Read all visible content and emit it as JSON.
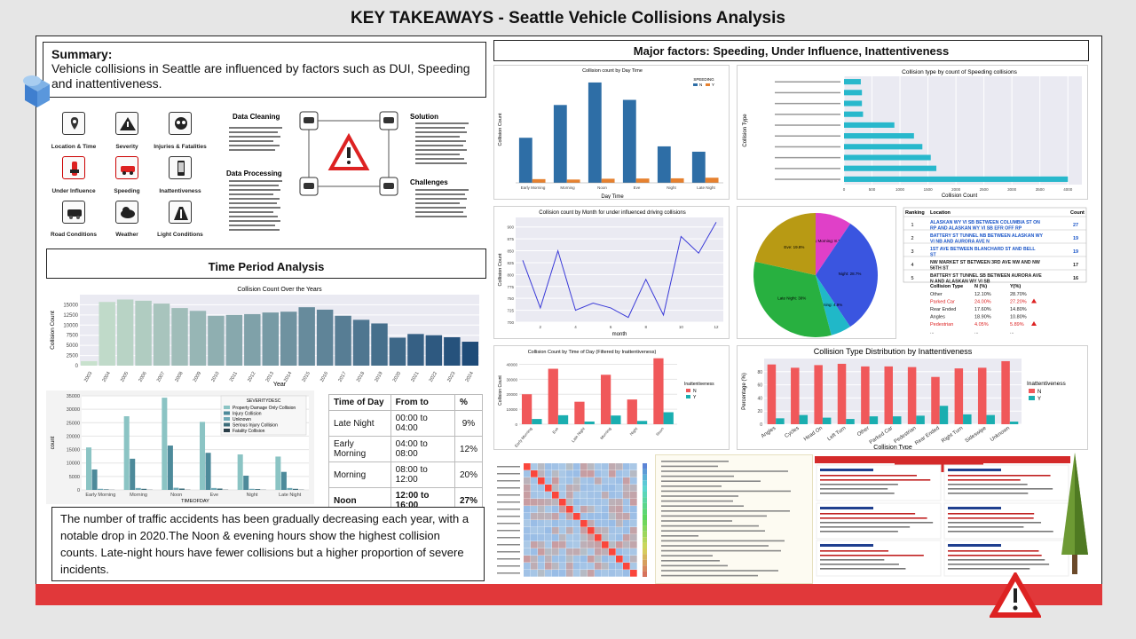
{
  "page_title": "KEY TAKEAWAYS - Seattle Vehicle Collisions Analysis",
  "summary": {
    "heading": "Summary:",
    "body": "Vehicle collisions in Seattle are influenced by factors such as DUI, Speeding and inattentiveness."
  },
  "icons": [
    {
      "label": "Location & Time",
      "icon": "map-pin-icon"
    },
    {
      "label": "Severity",
      "icon": "warning-icon"
    },
    {
      "label": "Injuries & Fatalities",
      "icon": "skull-icon"
    },
    {
      "label": "Under Influence",
      "icon": "bottle-icon"
    },
    {
      "label": "Speeding",
      "icon": "speeding-car-icon"
    },
    {
      "label": "Inattentiveness",
      "icon": "phone-icon"
    },
    {
      "label": "Road Conditions",
      "icon": "road-car-icon"
    },
    {
      "label": "Weather",
      "icon": "cloud-icon"
    },
    {
      "label": "Light Conditions",
      "icon": "streetlight-icon"
    }
  ],
  "process": {
    "cleaning": "Data Cleaning",
    "processing": "Data Processing",
    "solution": "Solution",
    "challenges": "Challenges"
  },
  "time_period_heading": "Time Period Analysis",
  "major_factors_heading": "Major factors: Speeding, Under Influence, Inattentiveness",
  "time_of_day_table": {
    "headers": [
      "Time of Day",
      "From to",
      "%"
    ],
    "rows": [
      [
        "Late Night",
        "00:00 to 04:00",
        "9%"
      ],
      [
        "Early Morning",
        "04:00 to 08:00",
        "12%"
      ],
      [
        "Morning",
        "08:00 to 12:00",
        "20%"
      ],
      [
        "Noon",
        "12:00 to 16:00",
        "27%"
      ],
      [
        "Eve",
        "16:00 to 20:00",
        "22%"
      ],
      [
        "Night",
        "20:00 to 00:00",
        "10%"
      ]
    ],
    "highlight_row": 3
  },
  "ranking_table": {
    "headers": [
      "Ranking",
      "Location",
      "Count"
    ],
    "rows": [
      [
        "1",
        "ALASKAN WY VI SB BETWEEN COLUMBIA ST ON RP AND ALASKAN WY VI SB EFR OFF RP",
        "27"
      ],
      [
        "2",
        "BATTERY ST TUNNEL NB BETWEEN ALASKAN WY VI NB AND AURORA AVE N",
        "19"
      ],
      [
        "3",
        "1ST AVE BETWEEN BLANCHARD ST AND BELL ST",
        "19"
      ],
      [
        "4",
        "NW MARKET ST BETWEEN 3RD AVE NW AND NW 56TH ST",
        "17"
      ],
      [
        "5",
        "BATTERY ST TUNNEL SB BETWEEN AURORA AVE N AND ALASKAN WY VI SB",
        "16"
      ]
    ]
  },
  "collision_type_table": {
    "headers": [
      "Collision Type",
      "N (%)",
      "Y(%)"
    ],
    "rows": [
      [
        "Other",
        "12.10%",
        "28.70%"
      ],
      [
        "Parked Car",
        "24.00%",
        "27.20%"
      ],
      [
        "Rear Ended",
        "17.60%",
        "14.80%"
      ],
      [
        "Angles",
        "18.90%",
        "10.80%"
      ],
      [
        "Pedestrian",
        "4.05%",
        "5.89%"
      ],
      [
        "...",
        "...",
        "..."
      ]
    ]
  },
  "conclusion": "The number of traffic accidents has been gradually decreasing each year, with a notable drop in 2020.The Noon & evening hours show the highest collision counts. Late-night hours have fewer collisions but a higher proportion of severe incidents.",
  "colors": {
    "accent_red": "#e1383a",
    "frame": "#222222",
    "bg": "#e6e6e6",
    "steel_blue": "#2e6ea6",
    "orange": "#e6812f",
    "cyan": "#28b8cc",
    "coral": "#f0585a",
    "teal": "#1aaeb0"
  },
  "chart_data": [
    {
      "type": "bar",
      "title": "Collision Count Over the Years",
      "xlabel": "Year",
      "ylabel": "Collision Count",
      "categories": [
        "2003",
        "2004",
        "2005",
        "2006",
        "2007",
        "2008",
        "2009",
        "2010",
        "2011",
        "2012",
        "2013",
        "2014",
        "2015",
        "2016",
        "2017",
        "2018",
        "2019",
        "2020",
        "2021",
        "2022",
        "2023",
        "2024"
      ],
      "values": [
        1100,
        15700,
        16300,
        16000,
        15300,
        14200,
        13500,
        12300,
        12500,
        12700,
        13100,
        13300,
        14400,
        13800,
        12300,
        11300,
        10400,
        6900,
        7800,
        7500,
        7000,
        5900
      ],
      "ylim": [
        0,
        17500
      ],
      "yticks": [
        0,
        2500,
        5000,
        7500,
        10000,
        12500,
        15000
      ]
    },
    {
      "type": "bar",
      "title": "",
      "xlabel": "TIMEOFDAY",
      "ylabel": "count",
      "categories": [
        "Early Morning",
        "Morning",
        "Noon",
        "Eve",
        "Night",
        "Late Night"
      ],
      "legend_title": "SEVERITYDESC",
      "series": [
        {
          "name": "Property Damage Only Collision",
          "values": [
            15800,
            27400,
            34300,
            25300,
            13200,
            12400
          ]
        },
        {
          "name": "Injury Collision",
          "values": [
            7600,
            11600,
            16500,
            13800,
            5300,
            6700
          ]
        },
        {
          "name": "Unknown",
          "values": [
            400,
            700,
            800,
            700,
            400,
            700
          ]
        },
        {
          "name": "Serious Injury Collision",
          "values": [
            200,
            400,
            500,
            500,
            300,
            400
          ]
        },
        {
          "name": "Fatality Collision",
          "values": [
            50,
            60,
            70,
            80,
            60,
            80
          ]
        }
      ],
      "ylim": [
        0,
        35000
      ],
      "yticks": [
        0,
        5000,
        10000,
        15000,
        20000,
        25000,
        30000,
        35000
      ]
    },
    {
      "type": "bar",
      "title": "Collision count by Day Time",
      "xlabel": "Day Time",
      "ylabel": "Collision Count",
      "categories": [
        "Early Morning",
        "Morning",
        "Noon",
        "Eve",
        "Night",
        "Late Night"
      ],
      "legend_title": "SPEEDING",
      "series": [
        {
          "name": "N",
          "values": [
            22000,
            38000,
            49000,
            40500,
            17800,
            15200
          ]
        },
        {
          "name": "Y",
          "values": [
            1800,
            1600,
            2000,
            2100,
            2200,
            2500
          ]
        }
      ]
    },
    {
      "type": "bar",
      "title": "Collision type by count of Speeding collisions",
      "xlabel": "Collision Count",
      "ylabel": "Collision Type",
      "series": [
        {
          "values": [
            300,
            320,
            320,
            340,
            900,
            1250,
            1400,
            1550,
            1650,
            4000
          ]
        }
      ],
      "xticks": [
        0,
        500,
        1000,
        1500,
        2000,
        2500,
        3000,
        3500,
        4000
      ]
    },
    {
      "type": "line",
      "title": "Collision count by Month for under influenced driving collisions",
      "xlabel": "month",
      "ylabel": "Collision Count",
      "x": [
        1,
        2,
        3,
        4,
        5,
        6,
        7,
        8,
        9,
        10,
        11,
        12
      ],
      "values": [
        830,
        730,
        850,
        725,
        740,
        730,
        710,
        790,
        715,
        880,
        845,
        910
      ],
      "ylim": [
        700,
        920
      ]
    },
    {
      "type": "pie",
      "labels": [
        "Early Morning",
        "Night",
        "Morning",
        "Late Night",
        "Eve"
      ],
      "values": [
        8.7,
        28.7,
        4.9,
        30.0,
        19.8
      ]
    },
    {
      "type": "bar",
      "title": "Collision Count by Time of Day (Filtered by Inattentiveness)",
      "xlabel": "",
      "ylabel": "Collision Count",
      "categories": [
        "Early Morning",
        "Eve",
        "Late Night",
        "Morning",
        "Night",
        "Noon"
      ],
      "legend_title": "Inattentiveness",
      "series": [
        {
          "name": "N",
          "values": [
            20000,
            37000,
            15000,
            33000,
            16500,
            44000
          ]
        },
        {
          "name": "Y",
          "values": [
            3500,
            6000,
            1800,
            5800,
            2200,
            8000
          ]
        }
      ]
    },
    {
      "type": "bar",
      "title": "Collision Type Distribution by Inattentiveness",
      "xlabel": "Collision Type",
      "ylabel": "Percentage (%)",
      "categories": [
        "Angles",
        "Cycles",
        "Head On",
        "Left Turn",
        "Other",
        "Parked Car",
        "Pedestrian",
        "Rear Ended",
        "Right Turn",
        "Sideswipe",
        "Unknown"
      ],
      "legend_title": "Inattentiveness",
      "series": [
        {
          "name": "N",
          "values": [
            91,
            86,
            90,
            92,
            88,
            88,
            87,
            72,
            85,
            86,
            96
          ]
        },
        {
          "name": "Y",
          "values": [
            9,
            14,
            10,
            8,
            12,
            12,
            13,
            28,
            15,
            14,
            4
          ]
        }
      ]
    }
  ]
}
